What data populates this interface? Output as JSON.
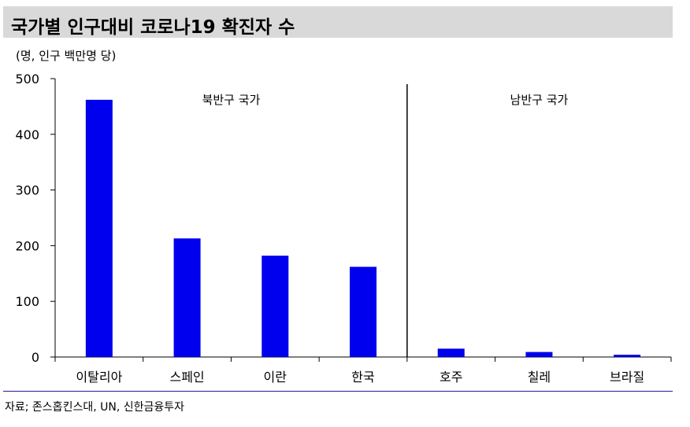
{
  "header": {
    "title": "국가별 인구대비 코로나19 확진자 수",
    "unit": "(명, 인구 백만명 당)"
  },
  "footer": {
    "source": "자료; 존스홉킨스대, UN, 신한금융투자"
  },
  "chart_data": {
    "type": "bar",
    "title": "국가별 인구대비 코로나19 확진자 수",
    "ylabel": "(명, 인구 백만명 당)",
    "xlabel": "",
    "ylim": [
      0,
      500
    ],
    "yticks": [
      "0",
      "100",
      "200",
      "300",
      "400",
      "500"
    ],
    "categories": [
      "이탈리아",
      "스페인",
      "이란",
      "한국",
      "호주",
      "칠레",
      "브라질"
    ],
    "values": [
      462,
      213,
      182,
      162,
      15,
      9,
      4
    ],
    "groups": [
      {
        "label": "북반구 국가",
        "start": 0,
        "end": 3
      },
      {
        "label": "남반구 국가",
        "start": 4,
        "end": 6
      }
    ],
    "bar_color": "#0000ee",
    "grid": false
  }
}
